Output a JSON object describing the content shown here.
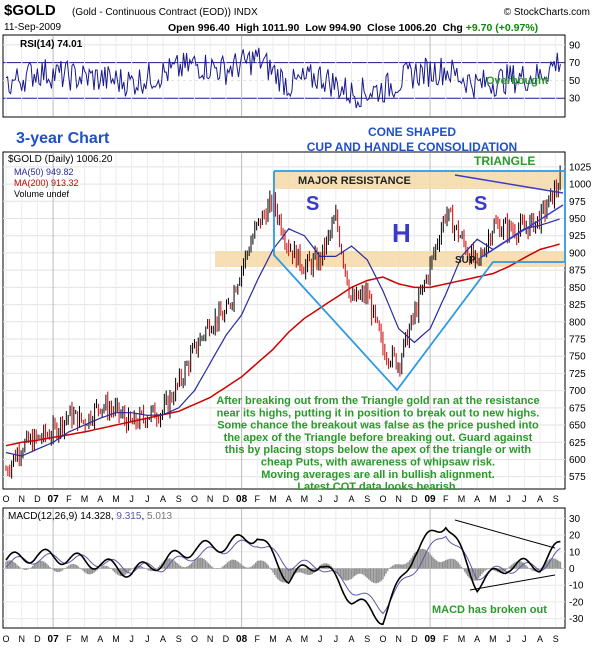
{
  "header": {
    "symbol": "$GOLD",
    "name": "(Gold - Continuous Contract (EOD))  INDX",
    "source": "© StockCharts.com",
    "date": "11-Sep-2009",
    "open_label": "Open",
    "open": "996.40",
    "high_label": "High",
    "high": "1011.90",
    "low_label": "Low",
    "low": "994.90",
    "close_label": "Close",
    "close": "1006.20",
    "chg_label": "Chg",
    "chg": "+9.70 (+0.97%)"
  },
  "rsi_panel": {
    "legend": "RSI(14) 74.01",
    "overbought_label": "Overbought",
    "ticks": [
      "90",
      "70",
      "50",
      "30"
    ]
  },
  "price_panel": {
    "legend_price": "$GOLD (Daily) 1006.20",
    "legend_ma50": "MA(50) 949.82",
    "legend_ma200": "MA(200) 913.32",
    "legend_volume": "Volume undef",
    "chart_title": "3-year Chart",
    "pattern_line1": "CONE SHAPED",
    "pattern_line2": "CUP AND HANDLE CONSOLIDATION",
    "triangle_label": "TRIANGLE",
    "resistance_label": "MAJOR RESISTANCE",
    "support_label": "SUP.",
    "shoulder_left": "S",
    "head": "H",
    "shoulder_right": "S",
    "commentary": [
      "After breaking out from the Triangle gold ran at the resistance",
      "near its highs, putting it in position to break out to new highs.",
      "Some chance the breakout was false as the price pushed into",
      "the apex of the Triangle before breaking out. Guard against",
      "this by placing stops below the apex of the triangle or with",
      "cheap Puts, with awareness of whipsaw risk.",
      "Moving averages are all in bullish alignment.",
      "Latest COT data looks bearish."
    ],
    "ticks": [
      "1025",
      "1000",
      "975",
      "950",
      "925",
      "900",
      "875",
      "850",
      "825",
      "800",
      "775",
      "750",
      "725",
      "700",
      "675",
      "650",
      "625",
      "600",
      "575"
    ]
  },
  "macd_panel": {
    "legend_name": "MACD(12,26,9)",
    "legend_macd": "14.328",
    "legend_signal": "9.315",
    "legend_hist": "5.013",
    "note": "MACD has broken out",
    "ticks": [
      "30",
      "20",
      "10",
      "0",
      "-10",
      "-20",
      "-30"
    ]
  },
  "x_axis": {
    "labels": [
      "O",
      "N",
      "D",
      "07",
      "F",
      "M",
      "A",
      "M",
      "J",
      "J",
      "A",
      "S",
      "O",
      "N",
      "D",
      "08",
      "F",
      "M",
      "A",
      "M",
      "J",
      "J",
      "A",
      "S",
      "O",
      "N",
      "D",
      "09",
      "F",
      "M",
      "A",
      "M",
      "J",
      "J",
      "A",
      "S"
    ]
  },
  "colors": {
    "price_bars": "#000000",
    "down_bars": "#cc0000",
    "ma50": "#2a2a9a",
    "ma200": "#cc0000",
    "annotation_blue": "#1e50c8",
    "annotation_green": "#2a9a2a",
    "cone_lines": "#2f9ae0",
    "band": "#f6d9a8",
    "rsi_line": "#1a1a8c",
    "macd_fill": "#909090"
  },
  "chart_data": [
    {
      "type": "line",
      "title": "RSI(14)",
      "ylim": [
        10,
        100
      ],
      "reference_lines": [
        70,
        30
      ],
      "x": [
        "2006-10",
        "2006-12",
        "2007-02",
        "2007-04",
        "2007-06",
        "2007-08",
        "2007-10",
        "2007-12",
        "2008-02",
        "2008-04",
        "2008-06",
        "2008-08",
        "2008-10",
        "2008-12",
        "2009-02",
        "2009-04",
        "2009-06",
        "2009-08",
        "2009-09-11"
      ],
      "series": [
        {
          "name": "RSI(14)",
          "values": [
            45,
            60,
            55,
            52,
            48,
            58,
            68,
            62,
            75,
            45,
            55,
            35,
            40,
            58,
            62,
            45,
            52,
            55,
            74.01
          ]
        }
      ]
    },
    {
      "type": "line",
      "title": "$GOLD (Daily)",
      "ylim": [
        560,
        1035
      ],
      "x": [
        "2006-10",
        "2006-11",
        "2006-12",
        "2007-01",
        "2007-02",
        "2007-03",
        "2007-04",
        "2007-05",
        "2007-06",
        "2007-07",
        "2007-08",
        "2007-09",
        "2007-10",
        "2007-11",
        "2007-12",
        "2008-01",
        "2008-02",
        "2008-03",
        "2008-04",
        "2008-05",
        "2008-06",
        "2008-07",
        "2008-08",
        "2008-09",
        "2008-10",
        "2008-11",
        "2008-12",
        "2009-01",
        "2009-02",
        "2009-03",
        "2009-04",
        "2009-05",
        "2009-06",
        "2009-07",
        "2009-08",
        "2009-09-11"
      ],
      "series": [
        {
          "name": "$GOLD",
          "values": [
            585,
            620,
            630,
            640,
            665,
            655,
            680,
            670,
            650,
            665,
            670,
            710,
            760,
            800,
            810,
            880,
            940,
            975,
            910,
            880,
            890,
            950,
            830,
            840,
            760,
            740,
            810,
            880,
            960,
            920,
            880,
            940,
            935,
            935,
            950,
            1006.2
          ]
        },
        {
          "name": "MA(50)",
          "values": [
            610,
            605,
            615,
            625,
            640,
            650,
            660,
            668,
            668,
            664,
            665,
            675,
            700,
            740,
            780,
            810,
            860,
            905,
            935,
            925,
            895,
            895,
            910,
            890,
            845,
            790,
            770,
            790,
            840,
            895,
            920,
            905,
            920,
            935,
            940,
            949.82
          ]
        },
        {
          "name": "MA(200)",
          "values": [
            620,
            625,
            628,
            632,
            636,
            640,
            645,
            650,
            655,
            660,
            665,
            670,
            680,
            690,
            705,
            720,
            740,
            760,
            785,
            805,
            820,
            835,
            850,
            860,
            865,
            855,
            850,
            850,
            855,
            860,
            865,
            870,
            880,
            893,
            905,
            913.32
          ]
        }
      ]
    },
    {
      "type": "line",
      "title": "MACD(12,26,9)",
      "ylim": [
        -35,
        35
      ],
      "x": [
        "2006-10",
        "2006-12",
        "2007-02",
        "2007-04",
        "2007-06",
        "2007-08",
        "2007-10",
        "2007-12",
        "2008-02",
        "2008-04",
        "2008-06",
        "2008-08",
        "2008-10",
        "2008-12",
        "2009-02",
        "2009-04",
        "2009-06",
        "2009-08",
        "2009-09-11"
      ],
      "series": [
        {
          "name": "MACD",
          "values": [
            5,
            8,
            6,
            3,
            -2,
            4,
            12,
            14,
            20,
            -6,
            4,
            -18,
            -30,
            10,
            28,
            -10,
            2,
            2,
            14.328
          ]
        },
        {
          "name": "Signal",
          "values": [
            3,
            6,
            6,
            4,
            0,
            1,
            8,
            12,
            16,
            2,
            2,
            -12,
            -24,
            0,
            22,
            -4,
            0,
            1,
            9.315
          ]
        }
      ]
    }
  ]
}
